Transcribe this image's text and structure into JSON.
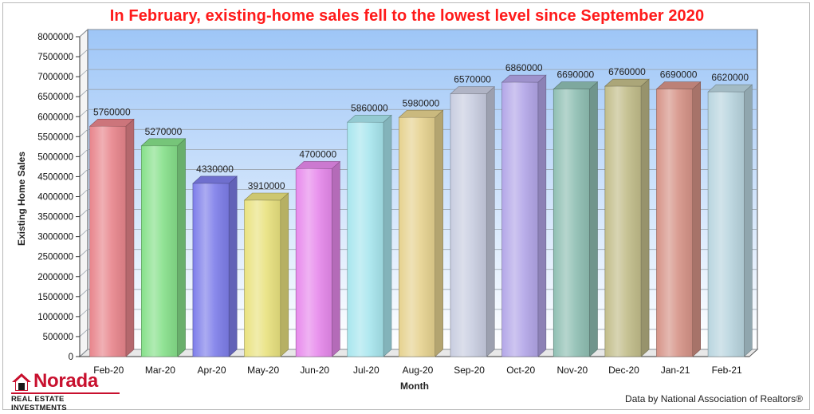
{
  "chart_data": {
    "type": "bar",
    "title": "In February, existing-home sales fell to the lowest level since September 2020",
    "xlabel": "Month",
    "ylabel": "Existing Home Sales",
    "ylim": [
      0,
      8000000
    ],
    "yticks": [
      0,
      500000,
      1000000,
      1500000,
      2000000,
      2500000,
      3000000,
      3500000,
      4000000,
      4500000,
      5000000,
      5500000,
      6000000,
      6500000,
      7000000,
      7500000,
      8000000
    ],
    "grid": true,
    "categories": [
      "Feb-20",
      "Mar-20",
      "Apr-20",
      "May-20",
      "Jun-20",
      "Jul-20",
      "Aug-20",
      "Sep-20",
      "Oct-20",
      "Nov-20",
      "Dec-20",
      "Jan-21",
      "Feb-21"
    ],
    "values": [
      5760000,
      5270000,
      4330000,
      3910000,
      4700000,
      5860000,
      5980000,
      6570000,
      6860000,
      6690000,
      6760000,
      6690000,
      6620000
    ],
    "bar_colors": [
      "#e8858c",
      "#86e08a",
      "#7e7eea",
      "#e9e27f",
      "#e789ec",
      "#a8e6ee",
      "#e6d28f",
      "#c8cde0",
      "#b3a6e8",
      "#8fbfb3",
      "#c2bd8a",
      "#d69387",
      "#b9d5df"
    ]
  },
  "branding": {
    "logo_name": "Norada",
    "logo_sub": "REAL ESTATE INVESTMENTS",
    "source": "Data by National Association of Realtors®"
  }
}
